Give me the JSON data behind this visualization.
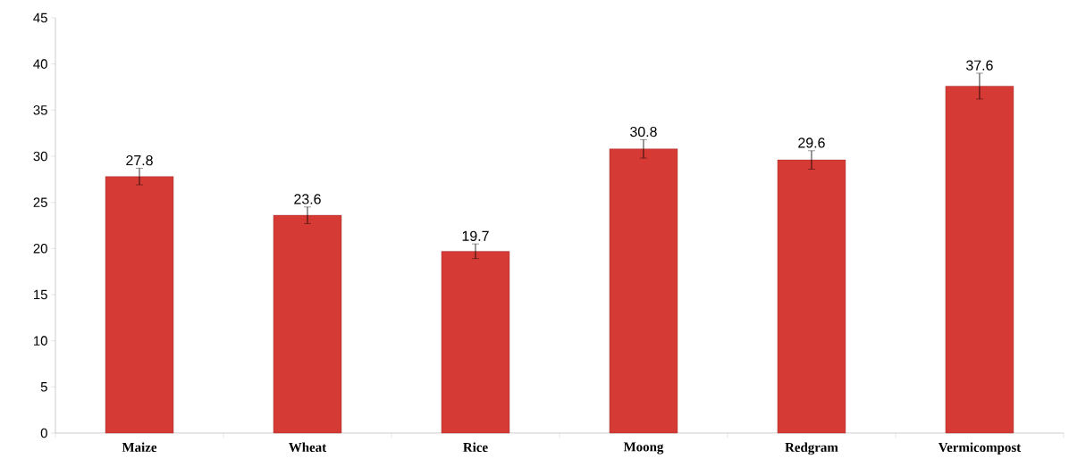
{
  "chart_data": {
    "type": "bar",
    "categories": [
      "Maize",
      "Wheat",
      "Rice",
      "Moong",
      "Redgram",
      "Vermicompost"
    ],
    "values": [
      27.8,
      23.6,
      19.7,
      30.8,
      29.6,
      37.6
    ],
    "errors": [
      0.9,
      0.9,
      0.8,
      1.0,
      1.0,
      1.4
    ],
    "color": "#d63a35",
    "ylim": [
      0,
      45
    ],
    "yticks": [
      0,
      5,
      10,
      15,
      20,
      25,
      30,
      35,
      40,
      45
    ],
    "data_labels": true,
    "grid": false
  }
}
